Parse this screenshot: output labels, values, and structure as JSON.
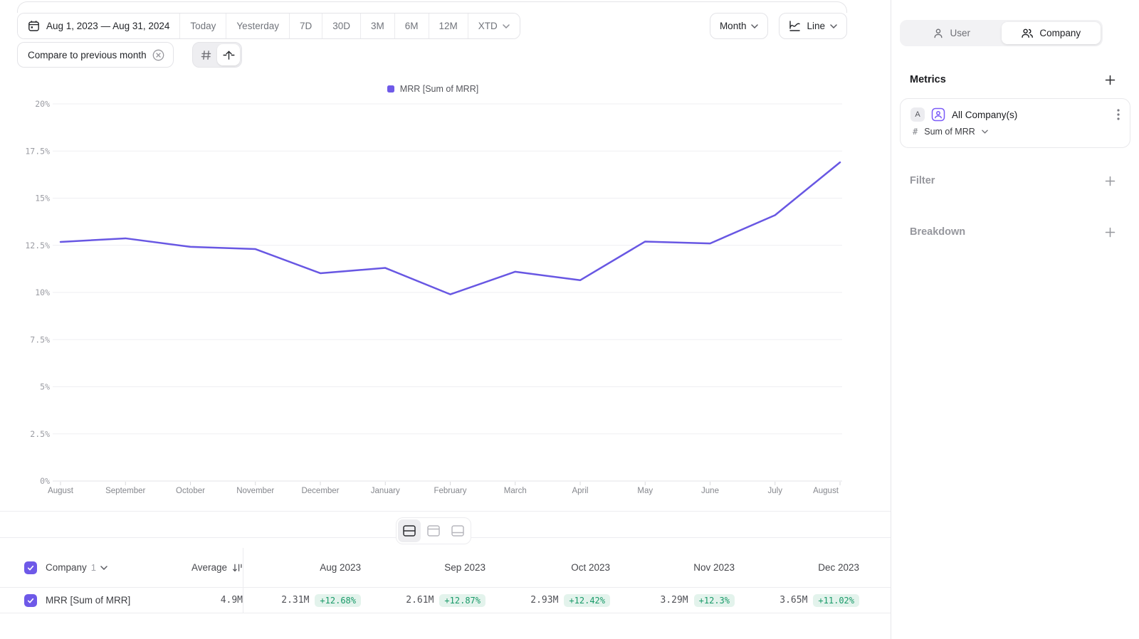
{
  "toolbar": {
    "date_range": "Aug 1, 2023 — Aug 31, 2024",
    "presets": [
      "Today",
      "Yesterday",
      "7D",
      "30D",
      "3M",
      "6M",
      "12M"
    ],
    "xtd_label": "XTD",
    "granularity": "Month",
    "chart_type": "Line",
    "compare_chip": "Compare to previous month"
  },
  "legend": {
    "label": "MRR [Sum of MRR]",
    "color": "#6f5ae8"
  },
  "chart_data": {
    "type": "line",
    "title": "",
    "x": [
      "August",
      "September",
      "October",
      "November",
      "December",
      "January",
      "February",
      "March",
      "April",
      "May",
      "June",
      "July",
      "August"
    ],
    "series": [
      {
        "name": "MRR [Sum of MRR]",
        "color": "#6857e3",
        "values": [
          12.68,
          12.87,
          12.42,
          12.3,
          11.02,
          11.3,
          9.9,
          11.1,
          10.65,
          12.7,
          12.6,
          14.1,
          16.9
        ]
      }
    ],
    "xlabel": "",
    "ylabel": "",
    "ylim": [
      0,
      20
    ],
    "yticks": [
      0,
      2.5,
      5,
      7.5,
      10,
      12.5,
      15,
      17.5,
      20
    ],
    "ytick_suffix": "%",
    "grid": true,
    "legend_position": "top"
  },
  "sidebar": {
    "tabs": [
      {
        "label": "User",
        "selected": false
      },
      {
        "label": "Company",
        "selected": true
      }
    ],
    "metrics": {
      "title": "Metrics",
      "item": {
        "badge": "A",
        "name": "All Company(s)",
        "field_prefix": "#",
        "field": "Sum of MRR"
      }
    },
    "filter": {
      "title": "Filter"
    },
    "breakdown": {
      "title": "Breakdown"
    }
  },
  "table": {
    "entity": "Company",
    "entity_count": "1",
    "average_label": "Average",
    "columns": [
      "Aug 2023",
      "Sep 2023",
      "Oct 2023",
      "Nov 2023",
      "Dec 2023"
    ],
    "rows": [
      {
        "name": "MRR [Sum of MRR]",
        "average": "4.9M",
        "cells": [
          {
            "value": "2.31M",
            "delta": "+12.68%"
          },
          {
            "value": "2.61M",
            "delta": "+12.87%"
          },
          {
            "value": "2.93M",
            "delta": "+12.42%"
          },
          {
            "value": "3.29M",
            "delta": "+12.3%"
          },
          {
            "value": "3.65M",
            "delta": "+11.02%"
          }
        ]
      }
    ]
  },
  "colors": {
    "accent": "#6e59e8",
    "line": "#6857e3",
    "positive_text": "#189a68",
    "positive_bg": "#e3f3ec"
  }
}
